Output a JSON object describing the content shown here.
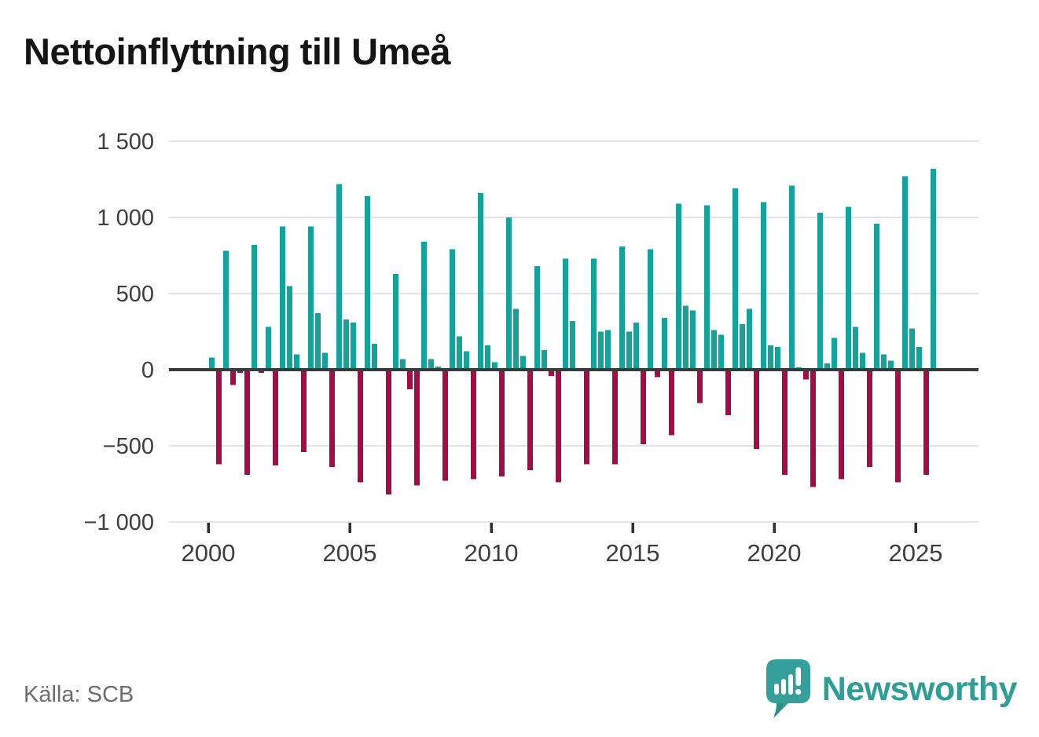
{
  "header": {
    "title": "Nettoinflyttning till Umeå"
  },
  "footer": {
    "source": "Källa: SCB",
    "brand": "Newsworthy"
  },
  "icons": {
    "logo": "newsworthy-speech-bubble-with-bar-chart-and-exclamation"
  },
  "colors": {
    "positive_bar": "#14a29a",
    "negative_bar": "#a30c44",
    "zero_line": "#3a3a3a",
    "gridline": "#e4e4e4",
    "axis_text": "#3e3e3e",
    "brand_teal": "#2f9e97"
  },
  "chart_data": {
    "type": "bar",
    "title": "Nettoinflyttning till Umeå",
    "xlabel": "",
    "ylabel": "",
    "ylim": [
      -1000,
      1500
    ],
    "grid": true,
    "legend": false,
    "y_ticks": [
      1500,
      1000,
      500,
      0,
      -500,
      -1000
    ],
    "y_tick_labels": [
      "1 500",
      "1 000",
      "500",
      "0",
      "−500",
      "−1 000"
    ],
    "x_ticks": [
      2000,
      2005,
      2010,
      2015,
      2020,
      2025
    ],
    "x_tick_labels": [
      "2000",
      "2005",
      "2010",
      "2015",
      "2020",
      "2025"
    ],
    "series_note": "quarterly net migration, Q1-Q4 per year",
    "years": [
      {
        "year": 2000,
        "values": [
          80,
          -620,
          780,
          -100
        ]
      },
      {
        "year": 2001,
        "values": [
          -20,
          -690,
          820,
          -20
        ]
      },
      {
        "year": 2002,
        "values": [
          280,
          -630,
          940,
          550
        ]
      },
      {
        "year": 2003,
        "values": [
          100,
          -540,
          940,
          370
        ]
      },
      {
        "year": 2004,
        "values": [
          110,
          -640,
          1220,
          330
        ]
      },
      {
        "year": 2005,
        "values": [
          310,
          -740,
          1140,
          170
        ]
      },
      {
        "year": 2006,
        "values": [
          0,
          -820,
          630,
          70
        ]
      },
      {
        "year": 2007,
        "values": [
          -130,
          -760,
          840,
          70
        ]
      },
      {
        "year": 2008,
        "values": [
          20,
          -730,
          790,
          220
        ]
      },
      {
        "year": 2009,
        "values": [
          120,
          -720,
          1160,
          160
        ]
      },
      {
        "year": 2010,
        "values": [
          50,
          -700,
          1000,
          400
        ]
      },
      {
        "year": 2011,
        "values": [
          90,
          -660,
          680,
          130
        ]
      },
      {
        "year": 2012,
        "values": [
          -40,
          -740,
          730,
          320
        ]
      },
      {
        "year": 2013,
        "values": [
          0,
          -620,
          730,
          250
        ]
      },
      {
        "year": 2014,
        "values": [
          260,
          -620,
          810,
          250
        ]
      },
      {
        "year": 2015,
        "values": [
          310,
          -490,
          790,
          -50
        ]
      },
      {
        "year": 2016,
        "values": [
          340,
          -430,
          1090,
          420
        ]
      },
      {
        "year": 2017,
        "values": [
          390,
          -220,
          1080,
          260
        ]
      },
      {
        "year": 2018,
        "values": [
          230,
          -300,
          1190,
          300
        ]
      },
      {
        "year": 2019,
        "values": [
          400,
          -520,
          1100,
          160
        ]
      },
      {
        "year": 2020,
        "values": [
          150,
          -690,
          1210,
          15
        ]
      },
      {
        "year": 2021,
        "values": [
          -65,
          -770,
          1030,
          40
        ]
      },
      {
        "year": 2022,
        "values": [
          210,
          -720,
          1070,
          280
        ]
      },
      {
        "year": 2023,
        "values": [
          110,
          -640,
          960,
          100
        ]
      },
      {
        "year": 2024,
        "values": [
          60,
          -740,
          1270,
          270
        ]
      },
      {
        "year": 2025,
        "values": [
          150,
          -690,
          1320
        ]
      }
    ]
  }
}
